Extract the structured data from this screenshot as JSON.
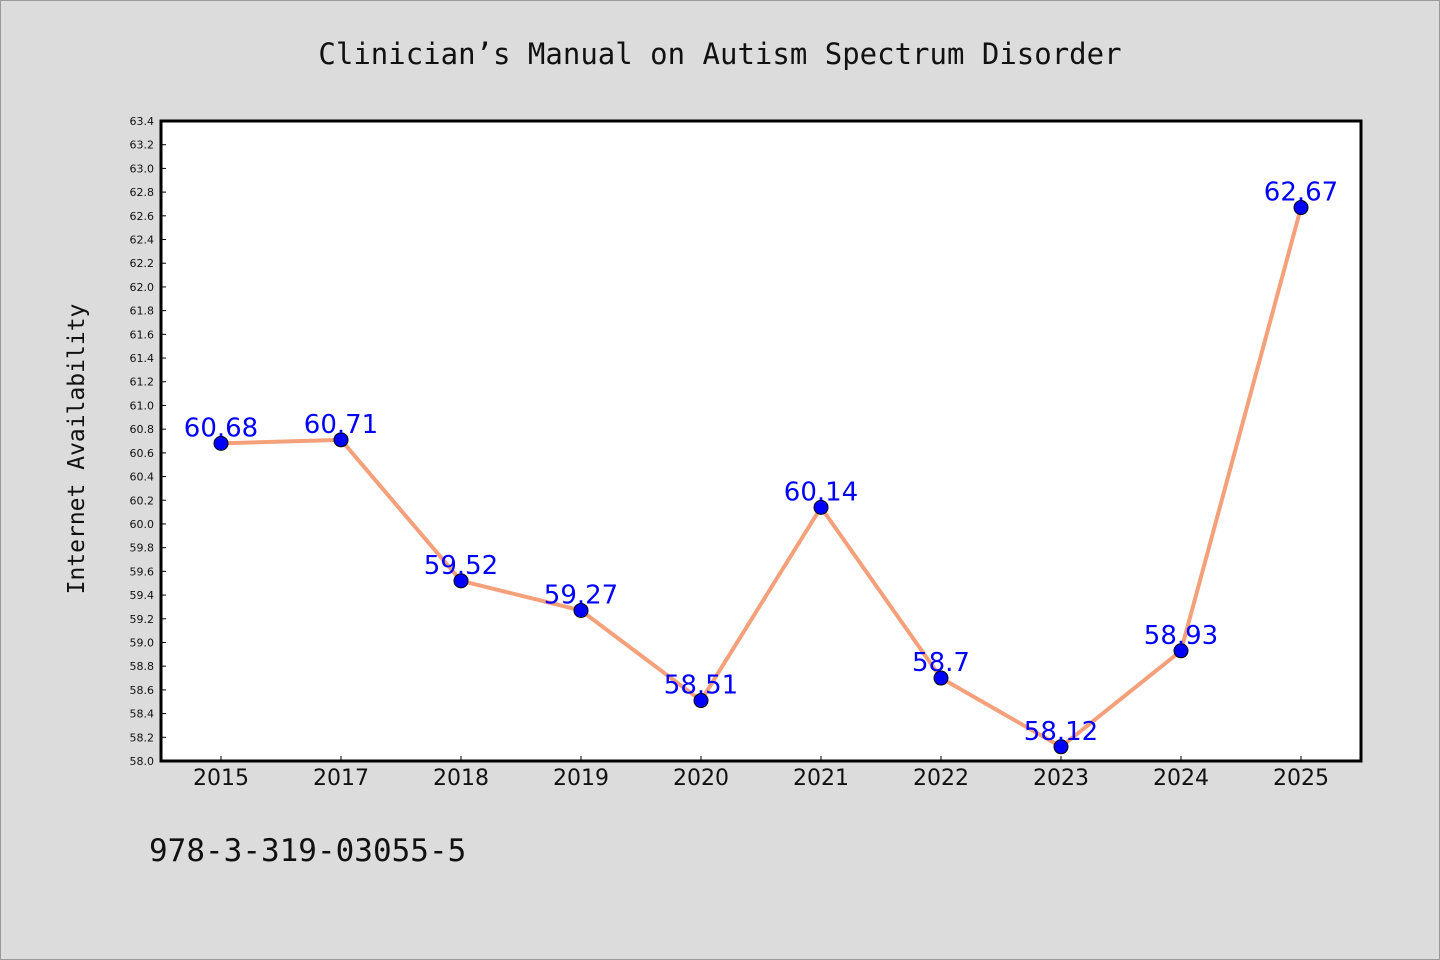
{
  "chart_data": {
    "type": "line",
    "title": "Clinician’s Manual on Autism Spectrum Disorder",
    "xlabel": "",
    "ylabel": "Internet Availability",
    "categories": [
      "2015",
      "2017",
      "2018",
      "2019",
      "2020",
      "2021",
      "2022",
      "2023",
      "2024",
      "2025"
    ],
    "values": [
      60.68,
      60.71,
      59.52,
      59.27,
      58.51,
      60.14,
      58.7,
      58.12,
      58.93,
      62.67
    ],
    "data_labels": [
      "60.68",
      "60.71",
      "59.52",
      "59.27",
      "58.51",
      "60.14",
      "58.7",
      "58.12",
      "58.93",
      "62.67"
    ],
    "ylim": [
      58.0,
      63.4
    ],
    "yticks": [
      "58.0",
      "58.2",
      "58.4",
      "58.6",
      "58.8",
      "59.0",
      "59.2",
      "59.4",
      "59.6",
      "59.8",
      "60.0",
      "60.2",
      "60.4",
      "60.6",
      "60.8",
      "61.0",
      "61.2",
      "61.4",
      "61.6",
      "61.8",
      "62.0",
      "62.2",
      "62.4",
      "62.6",
      "62.8",
      "63.0",
      "63.2",
      "63.4"
    ],
    "grid": false,
    "line_color": "#f4a07a",
    "marker_color": "#0000ff",
    "label_color": "#0000ff"
  },
  "footer": {
    "isbn": "978-3-319-03055-5"
  }
}
